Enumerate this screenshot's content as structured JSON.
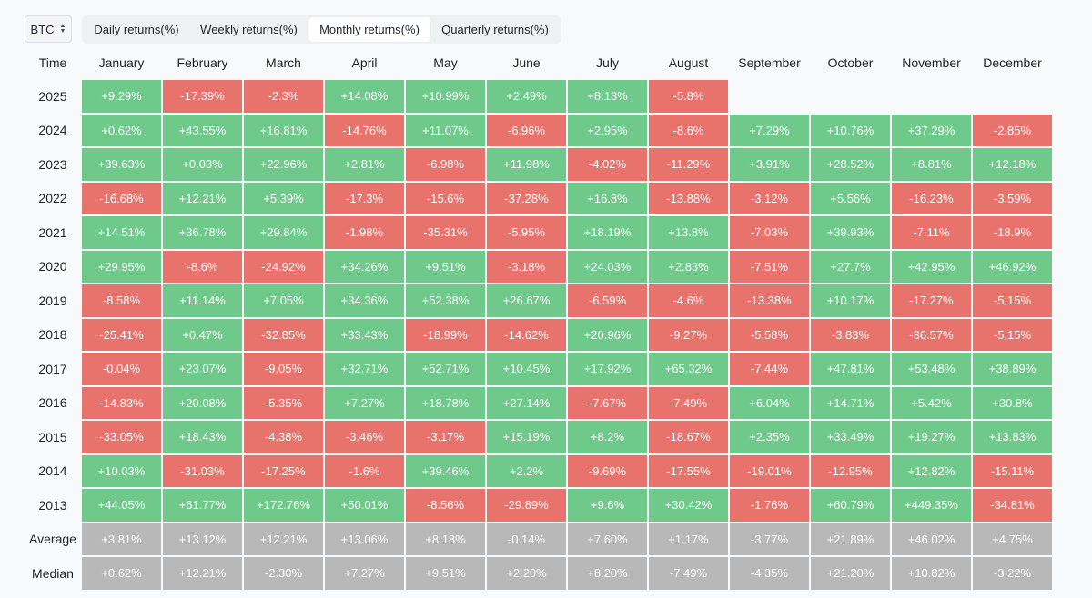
{
  "asset": {
    "selected": "BTC",
    "icon": "chevron-up-down-icon"
  },
  "tabs": [
    {
      "label": "Daily returns(%)",
      "active": false
    },
    {
      "label": "Weekly returns(%)",
      "active": false
    },
    {
      "label": "Monthly returns(%)",
      "active": true
    },
    {
      "label": "Quarterly returns(%)",
      "active": false
    }
  ],
  "colors": {
    "positive": "#6fc98a",
    "negative": "#e8736c",
    "stat": "#b8b8b8"
  },
  "table": {
    "time_header": "Time",
    "months": [
      "January",
      "February",
      "March",
      "April",
      "May",
      "June",
      "July",
      "August",
      "September",
      "October",
      "November",
      "December"
    ],
    "rows": [
      {
        "label": "2025",
        "values": [
          "+9.29%",
          "-17.39%",
          "-2.3%",
          "+14.08%",
          "+10.99%",
          "+2.49%",
          "+8.13%",
          "-5.8%",
          "",
          "",
          "",
          ""
        ]
      },
      {
        "label": "2024",
        "values": [
          "+0.62%",
          "+43.55%",
          "+16.81%",
          "-14.76%",
          "+11.07%",
          "-6.96%",
          "+2.95%",
          "-8.6%",
          "+7.29%",
          "+10.76%",
          "+37.29%",
          "-2.85%"
        ]
      },
      {
        "label": "2023",
        "values": [
          "+39.63%",
          "+0.03%",
          "+22.96%",
          "+2.81%",
          "-6.98%",
          "+11.98%",
          "-4.02%",
          "-11.29%",
          "+3.91%",
          "+28.52%",
          "+8.81%",
          "+12.18%"
        ]
      },
      {
        "label": "2022",
        "values": [
          "-16.68%",
          "+12.21%",
          "+5.39%",
          "-17.3%",
          "-15.6%",
          "-37.28%",
          "+16.8%",
          "-13.88%",
          "-3.12%",
          "+5.56%",
          "-16.23%",
          "-3.59%"
        ]
      },
      {
        "label": "2021",
        "values": [
          "+14.51%",
          "+36.78%",
          "+29.84%",
          "-1.98%",
          "-35.31%",
          "-5.95%",
          "+18.19%",
          "+13.8%",
          "-7.03%",
          "+39.93%",
          "-7.11%",
          "-18.9%"
        ]
      },
      {
        "label": "2020",
        "values": [
          "+29.95%",
          "-8.6%",
          "-24.92%",
          "+34.26%",
          "+9.51%",
          "-3.18%",
          "+24.03%",
          "+2.83%",
          "-7.51%",
          "+27.7%",
          "+42.95%",
          "+46.92%"
        ]
      },
      {
        "label": "2019",
        "values": [
          "-8.58%",
          "+11.14%",
          "+7.05%",
          "+34.36%",
          "+52.38%",
          "+26.67%",
          "-6.59%",
          "-4.6%",
          "-13.38%",
          "+10.17%",
          "-17.27%",
          "-5.15%"
        ]
      },
      {
        "label": "2018",
        "values": [
          "-25.41%",
          "+0.47%",
          "-32.85%",
          "+33.43%",
          "-18.99%",
          "-14.62%",
          "+20.96%",
          "-9.27%",
          "-5.58%",
          "-3.83%",
          "-36.57%",
          "-5.15%"
        ]
      },
      {
        "label": "2017",
        "values": [
          "-0.04%",
          "+23.07%",
          "-9.05%",
          "+32.71%",
          "+52.71%",
          "+10.45%",
          "+17.92%",
          "+65.32%",
          "-7.44%",
          "+47.81%",
          "+53.48%",
          "+38.89%"
        ]
      },
      {
        "label": "2016",
        "values": [
          "-14.83%",
          "+20.08%",
          "-5.35%",
          "+7.27%",
          "+18.78%",
          "+27.14%",
          "-7.67%",
          "-7.49%",
          "+6.04%",
          "+14.71%",
          "+5.42%",
          "+30.8%"
        ]
      },
      {
        "label": "2015",
        "values": [
          "-33.05%",
          "+18.43%",
          "-4.38%",
          "-3.46%",
          "-3.17%",
          "+15.19%",
          "+8.2%",
          "-18.67%",
          "+2.35%",
          "+33.49%",
          "+19.27%",
          "+13.83%"
        ]
      },
      {
        "label": "2014",
        "values": [
          "+10.03%",
          "-31.03%",
          "-17.25%",
          "-1.6%",
          "+39.46%",
          "+2.2%",
          "-9.69%",
          "-17.55%",
          "-19.01%",
          "-12.95%",
          "+12.82%",
          "-15.11%"
        ]
      },
      {
        "label": "2013",
        "values": [
          "+44.05%",
          "+61.77%",
          "+172.76%",
          "+50.01%",
          "-8.56%",
          "-29.89%",
          "+9.6%",
          "+30.42%",
          "-1.76%",
          "+60.79%",
          "+449.35%",
          "-34.81%"
        ]
      }
    ],
    "stats": [
      {
        "label": "Average",
        "values": [
          "+3.81%",
          "+13.12%",
          "+12.21%",
          "+13.06%",
          "+8.18%",
          "-0.14%",
          "+7.60%",
          "+1.17%",
          "-3.77%",
          "+21.89%",
          "+46.02%",
          "+4.75%"
        ]
      },
      {
        "label": "Median",
        "values": [
          "+0.62%",
          "+12.21%",
          "-2.30%",
          "+7.27%",
          "+9.51%",
          "+2.20%",
          "+8.20%",
          "-7.49%",
          "-4.35%",
          "+21.20%",
          "+10.82%",
          "-3.22%"
        ]
      }
    ]
  }
}
